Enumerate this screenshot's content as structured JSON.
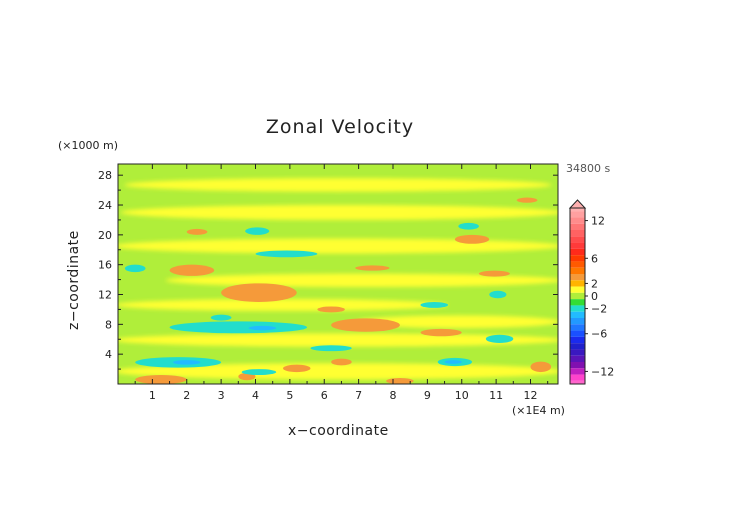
{
  "chart_data": {
    "type": "heatmap",
    "title": "Zonal Velocity",
    "time_label": "34800 s",
    "xlabel": "x−coordinate",
    "ylabel": "z−coordinate",
    "x_unit": "(×1E4 m)",
    "y_unit": "(×1000 m)",
    "xlim": [
      0,
      12.8
    ],
    "ylim": [
      0,
      29.5
    ],
    "x_ticks": [
      1,
      2,
      3,
      4,
      5,
      6,
      7,
      8,
      9,
      10,
      11,
      12
    ],
    "x_tick_labels": [
      "1",
      "2",
      "3",
      "4",
      "5",
      "6",
      "7",
      "8",
      "9",
      "10",
      "11",
      "12"
    ],
    "y_ticks": [
      4,
      8,
      12,
      16,
      20,
      24,
      28
    ],
    "y_tick_labels": [
      "4",
      "8",
      "12",
      "16",
      "20",
      "24",
      "28"
    ],
    "colorbar": {
      "labels": [
        "12",
        "6",
        "2",
        "0",
        "−2",
        "−6",
        "−12"
      ],
      "label_values": [
        12,
        6,
        2,
        0,
        -2,
        -6,
        -12
      ],
      "levels": [
        {
          "value": 14,
          "color": "#ffb0b0"
        },
        {
          "value": 13,
          "color": "#ffa0a0"
        },
        {
          "value": 12,
          "color": "#ff8c8c"
        },
        {
          "value": 11,
          "color": "#ff7676"
        },
        {
          "value": 10,
          "color": "#ff6262"
        },
        {
          "value": 9,
          "color": "#ff4c4c"
        },
        {
          "value": 8,
          "color": "#ff3a3a"
        },
        {
          "value": 7,
          "color": "#ff2a1a"
        },
        {
          "value": 6,
          "color": "#ff3a00"
        },
        {
          "value": 5,
          "color": "#ff5a00"
        },
        {
          "value": 4,
          "color": "#ff7800"
        },
        {
          "value": 3,
          "color": "#f59a3a"
        },
        {
          "value": 2,
          "color": "#ffb400"
        },
        {
          "value": 1,
          "color": "#ffff33"
        },
        {
          "value": 0,
          "color": "#b0ee3a"
        },
        {
          "value": -1,
          "color": "#33dd33"
        },
        {
          "value": -2,
          "color": "#22ddcc"
        },
        {
          "value": -3,
          "color": "#22bbff"
        },
        {
          "value": -4,
          "color": "#2299ff"
        },
        {
          "value": -5,
          "color": "#1f77ff"
        },
        {
          "value": -6,
          "color": "#1a50ff"
        },
        {
          "value": -7,
          "color": "#1a2aee"
        },
        {
          "value": -8,
          "color": "#2020cc"
        },
        {
          "value": -9,
          "color": "#3a18c0"
        },
        {
          "value": -10,
          "color": "#5a14b8"
        },
        {
          "value": -11,
          "color": "#8010b0"
        },
        {
          "value": -12,
          "color": "#c020c0"
        },
        {
          "value": -13,
          "color": "#ff44cc"
        },
        {
          "value": -14,
          "color": "#ff66cc"
        }
      ]
    },
    "dominant_value": 0,
    "features": [
      {
        "type": "band",
        "value": 1,
        "x": [
          0.3,
          12.5
        ],
        "z": [
          25.8,
          27.6
        ]
      },
      {
        "type": "band",
        "value": 1,
        "x": [
          0.2,
          12.8
        ],
        "z": [
          22.0,
          24.0
        ]
      },
      {
        "type": "band",
        "value": 1,
        "x": [
          0.0,
          12.8
        ],
        "z": [
          17.5,
          19.5
        ]
      },
      {
        "type": "band",
        "value": 1,
        "x": [
          1.5,
          12.8
        ],
        "z": [
          13.0,
          14.8
        ]
      },
      {
        "type": "band",
        "value": 1,
        "x": [
          0.0,
          9.5
        ],
        "z": [
          9.8,
          11.4
        ]
      },
      {
        "type": "band",
        "value": 1,
        "x": [
          0.0,
          12.8
        ],
        "z": [
          5.0,
          6.8
        ]
      },
      {
        "type": "band",
        "value": 1,
        "x": [
          0.0,
          12.8
        ],
        "z": [
          0.6,
          2.8
        ]
      },
      {
        "type": "band",
        "value": 1,
        "x": [
          7.0,
          12.8
        ],
        "z": [
          7.5,
          9.2
        ]
      },
      {
        "type": "blob",
        "value": 3,
        "x": [
          1.5,
          2.8
        ],
        "z": [
          14.5,
          16.0
        ]
      },
      {
        "type": "blob",
        "value": 3,
        "x": [
          3.0,
          5.2
        ],
        "z": [
          11.0,
          13.5
        ]
      },
      {
        "type": "blob",
        "value": 3,
        "x": [
          6.2,
          8.2
        ],
        "z": [
          7.0,
          8.8
        ]
      },
      {
        "type": "blob",
        "value": 3,
        "x": [
          9.8,
          10.8
        ],
        "z": [
          18.8,
          20.0
        ]
      },
      {
        "type": "blob",
        "value": 3,
        "x": [
          8.8,
          10.0
        ],
        "z": [
          6.4,
          7.4
        ]
      },
      {
        "type": "blob",
        "value": 3,
        "x": [
          0.5,
          2.0
        ],
        "z": [
          0.0,
          1.2
        ]
      },
      {
        "type": "blob",
        "value": 3,
        "x": [
          5.8,
          6.6
        ],
        "z": [
          9.6,
          10.4
        ]
      },
      {
        "type": "blob",
        "value": 3,
        "x": [
          7.8,
          8.6
        ],
        "z": [
          0.0,
          0.8
        ]
      },
      {
        "type": "blob",
        "value": 3,
        "x": [
          3.5,
          4.0
        ],
        "z": [
          0.5,
          1.5
        ]
      },
      {
        "type": "blob",
        "value": 3,
        "x": [
          11.6,
          12.2
        ],
        "z": [
          24.3,
          25.0
        ]
      },
      {
        "type": "blob",
        "value": 3,
        "x": [
          2.0,
          2.6
        ],
        "z": [
          20.0,
          20.8
        ]
      },
      {
        "type": "blob",
        "value": 3,
        "x": [
          6.9,
          7.9
        ],
        "z": [
          15.2,
          15.9
        ]
      },
      {
        "type": "blob",
        "value": 3,
        "x": [
          10.5,
          11.4
        ],
        "z": [
          14.4,
          15.2
        ]
      },
      {
        "type": "blob",
        "value": 3,
        "x": [
          4.8,
          5.6
        ],
        "z": [
          1.6,
          2.6
        ]
      },
      {
        "type": "blob",
        "value": 3,
        "x": [
          6.2,
          6.8
        ],
        "z": [
          2.5,
          3.4
        ]
      },
      {
        "type": "blob",
        "value": 3,
        "x": [
          12.0,
          12.6
        ],
        "z": [
          1.6,
          3.0
        ]
      },
      {
        "type": "blob",
        "value": -2,
        "x": [
          1.5,
          5.5
        ],
        "z": [
          6.8,
          8.4
        ]
      },
      {
        "type": "blob",
        "value": -2,
        "x": [
          0.5,
          3.0
        ],
        "z": [
          2.2,
          3.6
        ]
      },
      {
        "type": "blob",
        "value": -2,
        "x": [
          4.0,
          5.8
        ],
        "z": [
          17.0,
          17.9
        ]
      },
      {
        "type": "blob",
        "value": -2,
        "x": [
          9.3,
          10.3
        ],
        "z": [
          2.4,
          3.5
        ]
      },
      {
        "type": "blob",
        "value": -2,
        "x": [
          10.7,
          11.5
        ],
        "z": [
          5.5,
          6.6
        ]
      },
      {
        "type": "blob",
        "value": -2,
        "x": [
          9.9,
          10.5
        ],
        "z": [
          20.7,
          21.6
        ]
      },
      {
        "type": "blob",
        "value": -2,
        "x": [
          8.8,
          9.6
        ],
        "z": [
          10.2,
          11.0
        ]
      },
      {
        "type": "blob",
        "value": -2,
        "x": [
          5.6,
          6.8
        ],
        "z": [
          4.4,
          5.2
        ]
      },
      {
        "type": "blob",
        "value": -2,
        "x": [
          3.6,
          4.6
        ],
        "z": [
          1.2,
          2.0
        ]
      },
      {
        "type": "blob",
        "value": -2,
        "x": [
          0.2,
          0.8
        ],
        "z": [
          15.0,
          16.0
        ]
      },
      {
        "type": "blob",
        "value": -2,
        "x": [
          3.7,
          4.4
        ],
        "z": [
          20.0,
          21.0
        ]
      },
      {
        "type": "blob",
        "value": -2,
        "x": [
          10.8,
          11.3
        ],
        "z": [
          11.5,
          12.5
        ]
      },
      {
        "type": "blob",
        "value": -2,
        "x": [
          2.7,
          3.3
        ],
        "z": [
          8.5,
          9.3
        ]
      },
      {
        "type": "blob",
        "value": -3,
        "x": [
          3.8,
          4.6
        ],
        "z": [
          7.2,
          7.8
        ]
      },
      {
        "type": "blob",
        "value": -3,
        "x": [
          1.6,
          2.4
        ],
        "z": [
          2.6,
          3.2
        ]
      },
      {
        "type": "blob",
        "value": -3,
        "x": [
          9.5,
          10.0
        ],
        "z": [
          2.7,
          3.2
        ]
      }
    ]
  }
}
